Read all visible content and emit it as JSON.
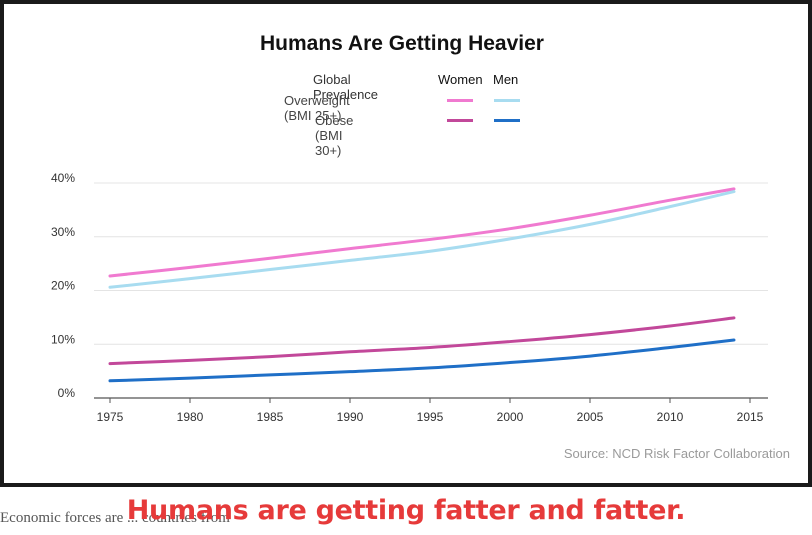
{
  "chart_data": {
    "type": "line",
    "title": "Humans Are Getting Heavier",
    "legend": {
      "header": "Global Prevalence",
      "column_women": "Women",
      "column_men": "Men",
      "row_overweight": "Overweight (BMI 25+)",
      "row_obese": "Obese (BMI 30+)",
      "placement": "top-center"
    },
    "x": [
      1975,
      1980,
      1985,
      1990,
      1995,
      2000,
      2005,
      2010,
      2014
    ],
    "xticks": [
      1975,
      1980,
      1985,
      1990,
      1995,
      2000,
      2005,
      2010,
      2015
    ],
    "yticks": [
      0,
      10,
      20,
      30,
      40
    ],
    "ytick_labels": [
      "0%",
      "10%",
      "20%",
      "30%",
      "40%"
    ],
    "xlim": [
      1975,
      2015
    ],
    "ylim": [
      0,
      40
    ],
    "grid": "horizontal",
    "series": [
      {
        "name": "Overweight (BMI 25+) Women",
        "color": "#f07ad0",
        "values": [
          22.7,
          24.3,
          26.0,
          27.8,
          29.5,
          31.5,
          34.0,
          36.8,
          38.9
        ]
      },
      {
        "name": "Overweight (BMI 25+) Men",
        "color": "#a8dcf0",
        "values": [
          20.6,
          22.2,
          23.9,
          25.6,
          27.3,
          29.6,
          32.3,
          35.6,
          38.4
        ]
      },
      {
        "name": "Obese (BMI 30+) Women",
        "color": "#c2489a",
        "values": [
          6.4,
          7.0,
          7.7,
          8.6,
          9.4,
          10.5,
          11.8,
          13.4,
          14.9
        ]
      },
      {
        "name": "Obese (BMI 30+) Men",
        "color": "#1f6fc7",
        "values": [
          3.2,
          3.7,
          4.3,
          4.9,
          5.6,
          6.6,
          7.8,
          9.4,
          10.8
        ]
      }
    ],
    "source": "Source: NCD Risk Factor Collaboration"
  },
  "caption": "Humans are getting fatter and fatter.",
  "page_text_fragment": "Economic forces are ... countries from"
}
